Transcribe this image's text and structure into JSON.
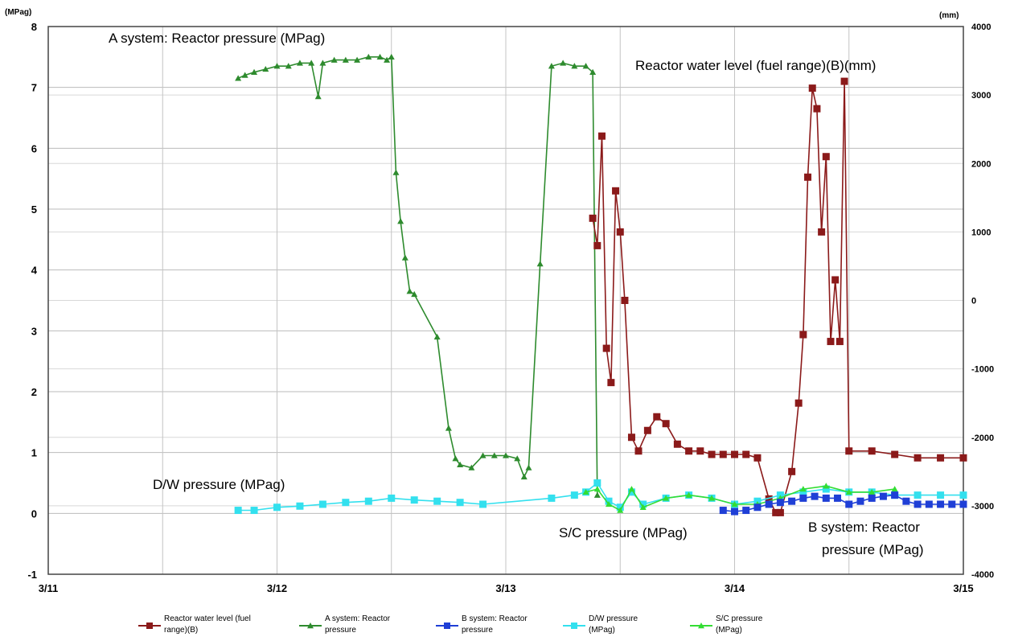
{
  "chart_data": {
    "type": "line",
    "left_axis_unit": "(MPag)",
    "right_axis_unit": "(mm)",
    "x_ticks": [
      "3/11",
      "3/12",
      "3/13",
      "3/14",
      "3/15"
    ],
    "x_range_days": [
      11,
      15
    ],
    "y_left": {
      "ylim": [
        -1,
        8
      ],
      "ticks": [
        "-1",
        "0",
        "1",
        "2",
        "3",
        "4",
        "5",
        "6",
        "7",
        "8"
      ]
    },
    "y_right": {
      "ylim": [
        -4000,
        4000
      ],
      "ticks": [
        "-4000",
        "-3000",
        "-2000",
        "-1000",
        "0",
        "1000",
        "2000",
        "3000",
        "4000"
      ]
    },
    "grid": true,
    "annotations": {
      "a_system": "A system: Reactor pressure (MPag)",
      "water_level": "Reactor water level (fuel range)(B)(mm)",
      "dw": "D/W pressure (MPag)",
      "sc": "S/C pressure (MPag)",
      "b_system_1": "B system: Reactor",
      "b_system_2": "pressure (MPag)"
    },
    "legend": [
      {
        "line1": "Reactor water level (fuel",
        "line2": "range)(B)",
        "color": "#8b1a1a",
        "marker": "square"
      },
      {
        "line1": "A system: Reactor",
        "line2": "pressure",
        "color": "#2e8b2e",
        "marker": "triangle"
      },
      {
        "line1": "B system: Reactor",
        "line2": "pressure",
        "color": "#1f3fd6",
        "marker": "square"
      },
      {
        "line1": "D/W pressure",
        "line2": "(MPag)",
        "color": "#33e0ee",
        "marker": "square"
      },
      {
        "line1": "S/C pressure",
        "line2": "(MPag)",
        "color": "#33dd33",
        "marker": "triangle"
      }
    ],
    "series": [
      {
        "name": "A system: Reactor pressure",
        "axis": "left",
        "color": "#2e8b2e",
        "marker": "triangle",
        "x": [
          11.83,
          11.86,
          11.9,
          11.95,
          12.0,
          12.05,
          12.1,
          12.15,
          12.18,
          12.2,
          12.25,
          12.3,
          12.35,
          12.4,
          12.45,
          12.48,
          12.5,
          12.52,
          12.54,
          12.56,
          12.58,
          12.6,
          12.7,
          12.75,
          12.78,
          12.8,
          12.85,
          12.9,
          12.95,
          13.0,
          13.05,
          13.08,
          13.1,
          13.15,
          13.2,
          13.25,
          13.3,
          13.35,
          13.38,
          13.4
        ],
        "y": [
          7.15,
          7.2,
          7.25,
          7.3,
          7.35,
          7.35,
          7.4,
          7.4,
          6.85,
          7.4,
          7.45,
          7.45,
          7.45,
          7.5,
          7.5,
          7.45,
          7.5,
          5.6,
          4.8,
          4.2,
          3.65,
          3.6,
          2.9,
          1.4,
          0.9,
          0.8,
          0.75,
          0.95,
          0.95,
          0.95,
          0.9,
          0.6,
          0.75,
          4.1,
          7.35,
          7.4,
          7.35,
          7.35,
          7.25,
          0.3
        ]
      },
      {
        "name": "Reactor water level (fuel range)(B)",
        "axis": "right",
        "color": "#8b1a1a",
        "marker": "square",
        "x": [
          13.38,
          13.4,
          13.42,
          13.44,
          13.46,
          13.48,
          13.5,
          13.52,
          13.55,
          13.58,
          13.62,
          13.66,
          13.7,
          13.75,
          13.8,
          13.85,
          13.9,
          13.95,
          14.0,
          14.05,
          14.1,
          14.15,
          14.18,
          14.2,
          14.25,
          14.28,
          14.3,
          14.32,
          14.34,
          14.36,
          14.38,
          14.4,
          14.42,
          14.44,
          14.46,
          14.48,
          14.5,
          14.6,
          14.7,
          14.8,
          14.9,
          15.0
        ],
        "y": [
          1200,
          800,
          2400,
          -700,
          -1200,
          1600,
          1000,
          0,
          -2000,
          -2200,
          -1900,
          -1700,
          -1800,
          -2100,
          -2200,
          -2200,
          -2250,
          -2250,
          -2250,
          -2250,
          -2300,
          -2900,
          -3100,
          -3100,
          -2500,
          -1500,
          -500,
          1800,
          3100,
          2800,
          1000,
          2100,
          -600,
          300,
          -600,
          3200,
          -2200,
          -2200,
          -2250,
          -2300,
          -2300,
          -2300
        ]
      },
      {
        "name": "D/W pressure",
        "axis": "left",
        "color": "#33e0ee",
        "marker": "square",
        "x": [
          11.83,
          11.9,
          12.0,
          12.1,
          12.2,
          12.3,
          12.4,
          12.5,
          12.6,
          12.7,
          12.8,
          12.9,
          13.2,
          13.3,
          13.35,
          13.4,
          13.45,
          13.5,
          13.55,
          13.6,
          13.7,
          13.8,
          13.9,
          14.0,
          14.1,
          14.2,
          14.3,
          14.4,
          14.5,
          14.6,
          14.7,
          14.8,
          14.9,
          15.0
        ],
        "y": [
          0.05,
          0.05,
          0.1,
          0.12,
          0.15,
          0.18,
          0.2,
          0.25,
          0.22,
          0.2,
          0.18,
          0.15,
          0.25,
          0.3,
          0.35,
          0.5,
          0.2,
          0.1,
          0.35,
          0.15,
          0.25,
          0.3,
          0.25,
          0.15,
          0.2,
          0.3,
          0.35,
          0.4,
          0.35,
          0.35,
          0.3,
          0.3,
          0.3,
          0.3
        ]
      },
      {
        "name": "S/C pressure",
        "axis": "left",
        "color": "#33dd33",
        "marker": "triangle",
        "x": [
          13.35,
          13.4,
          13.45,
          13.5,
          13.55,
          13.6,
          13.7,
          13.8,
          13.9,
          14.0,
          14.1,
          14.2,
          14.3,
          14.4,
          14.5,
          14.6,
          14.7
        ],
        "y": [
          0.35,
          0.4,
          0.15,
          0.05,
          0.4,
          0.1,
          0.25,
          0.3,
          0.25,
          0.15,
          0.15,
          0.25,
          0.4,
          0.45,
          0.35,
          0.35,
          0.4
        ]
      },
      {
        "name": "B system: Reactor pressure",
        "axis": "left",
        "color": "#1f3fd6",
        "marker": "square",
        "x": [
          13.95,
          14.0,
          14.05,
          14.1,
          14.15,
          14.2,
          14.25,
          14.3,
          14.35,
          14.4,
          14.45,
          14.5,
          14.55,
          14.6,
          14.65,
          14.7,
          14.75,
          14.8,
          14.85,
          14.9,
          14.95,
          15.0
        ],
        "y": [
          0.05,
          0.03,
          0.05,
          0.1,
          0.15,
          0.18,
          0.2,
          0.25,
          0.28,
          0.25,
          0.25,
          0.15,
          0.2,
          0.25,
          0.28,
          0.3,
          0.2,
          0.15,
          0.15,
          0.15,
          0.15,
          0.15
        ]
      }
    ]
  }
}
